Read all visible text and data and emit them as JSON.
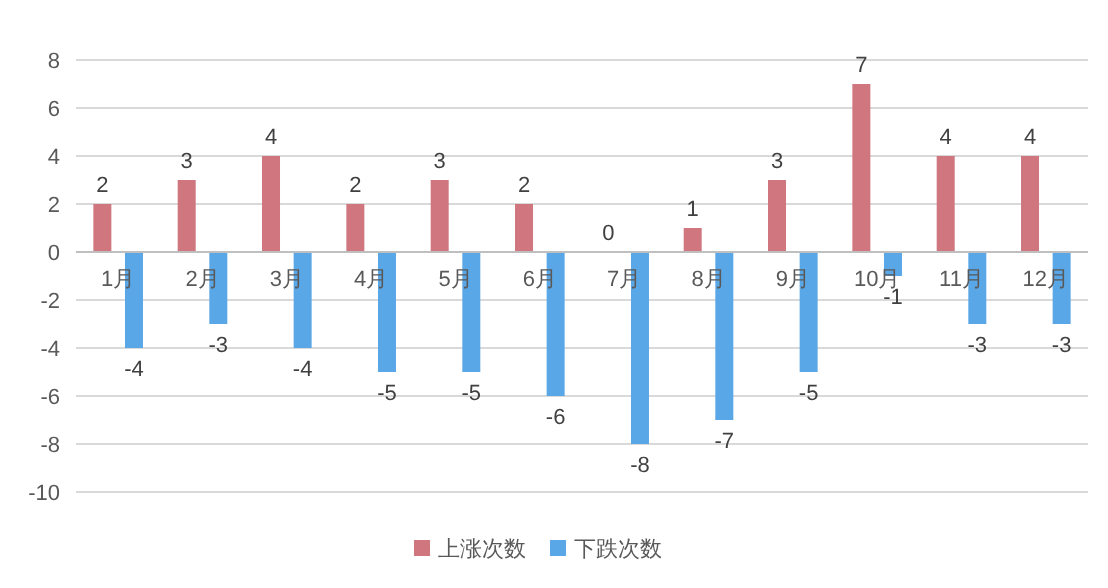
{
  "chart_data": {
    "type": "bar",
    "categories": [
      "1月",
      "2月",
      "3月",
      "4月",
      "5月",
      "6月",
      "7月",
      "8月",
      "9月",
      "10月",
      "11月",
      "12月"
    ],
    "series": [
      {
        "name": "上涨次数",
        "color": "#d0767f",
        "values": [
          2,
          3,
          4,
          2,
          3,
          2,
          0,
          1,
          3,
          7,
          4,
          4
        ]
      },
      {
        "name": "下跌次数",
        "color": "#5aa7e8",
        "values": [
          -4,
          -3,
          -4,
          -5,
          -5,
          -6,
          -8,
          -7,
          -5,
          -1,
          -3,
          -3
        ]
      }
    ],
    "ylim": [
      -10,
      8
    ],
    "yticks": [
      -10,
      -8,
      -6,
      -4,
      -2,
      0,
      2,
      4,
      6,
      8
    ],
    "grid": "y",
    "legend": "bottom",
    "data_labels": true
  }
}
